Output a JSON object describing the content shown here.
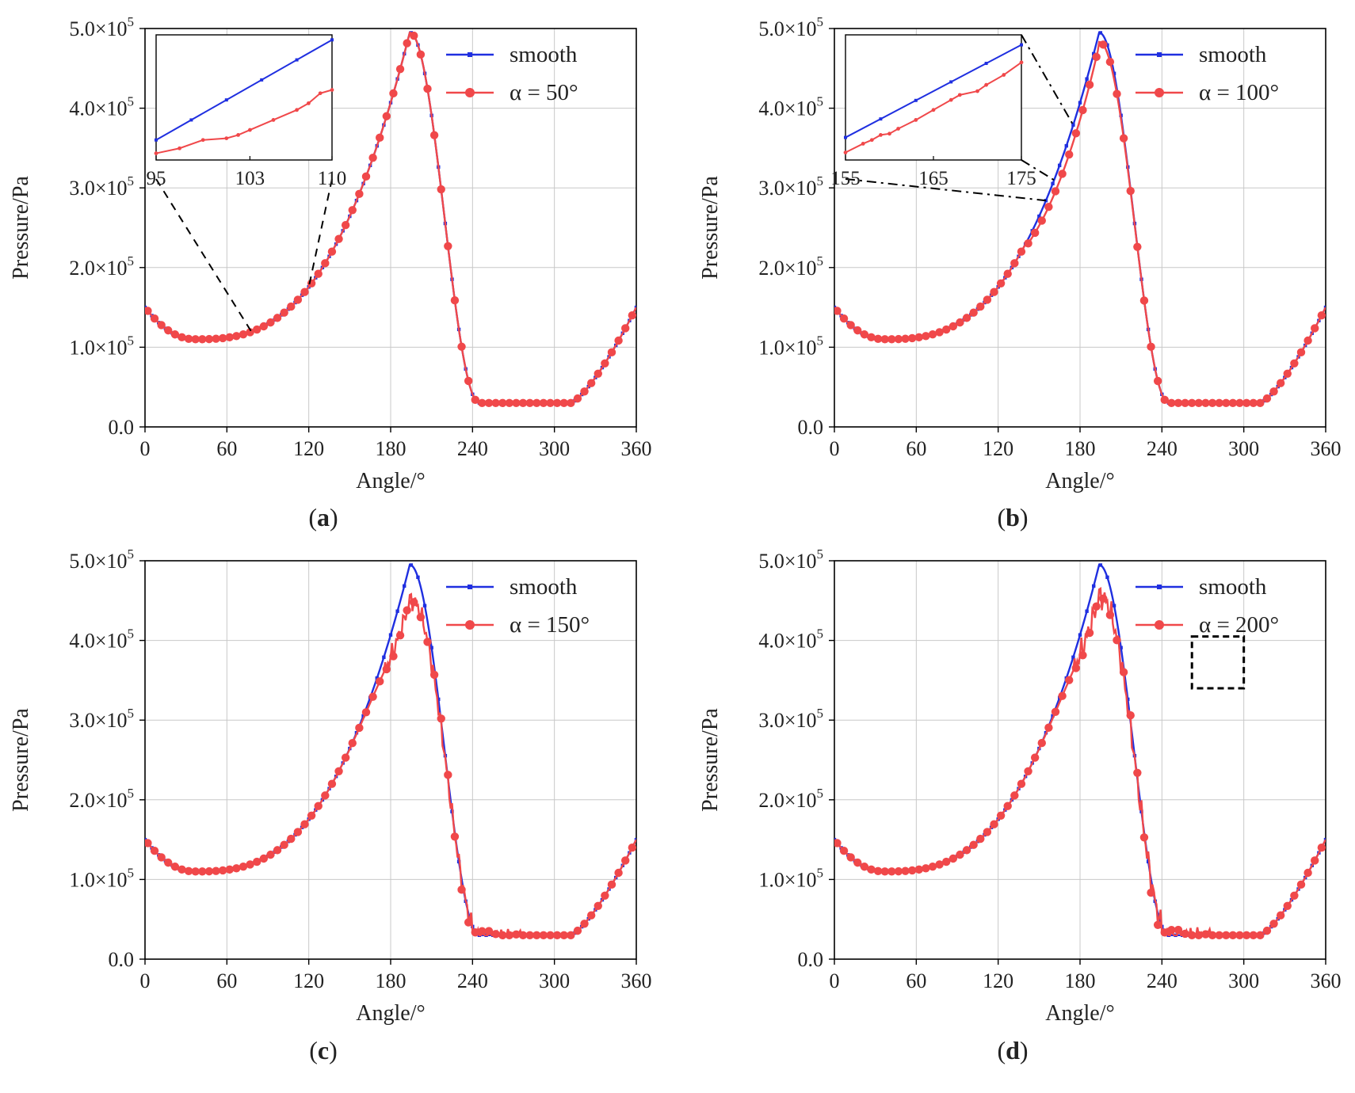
{
  "figure": {
    "panel_labels": [
      "a",
      "b",
      "c",
      "d"
    ],
    "colors": {
      "smooth": "#1f2fe0",
      "textured": "#f0484a",
      "grid": "#c8c8c8",
      "axis": "#000000",
      "guide": "#000000"
    }
  },
  "chart_data": [
    {
      "type": "line",
      "panel": "a",
      "xlabel": "Angle/°",
      "ylabel": "Pressure/Pa",
      "xlim": [
        0,
        360
      ],
      "ylim": [
        0,
        500000
      ],
      "xticks": [
        0,
        60,
        120,
        180,
        240,
        300,
        360
      ],
      "yticks": [
        0,
        100000,
        200000,
        300000,
        400000,
        500000
      ],
      "ytick_labels": [
        {
          "mant": "0.0",
          "exp": ""
        },
        {
          "mant": "1.0×10",
          "exp": "5"
        },
        {
          "mant": "2.0×10",
          "exp": "5"
        },
        {
          "mant": "3.0×10",
          "exp": "5"
        },
        {
          "mant": "4.0×10",
          "exp": "5"
        },
        {
          "mant": "5.0×10",
          "exp": "5"
        }
      ],
      "grid": true,
      "legend_position": "top-right",
      "series": [
        {
          "name": "smooth",
          "alpha": 0,
          "peak_drop": 0,
          "noise": 0
        },
        {
          "name": "α = 50°",
          "alpha": 50,
          "peak_drop": 0,
          "noise": 0
        }
      ],
      "inset": {
        "xlim": [
          95,
          110
        ],
        "xticks": [
          95,
          103,
          110
        ],
        "ylim": [
          100000,
          175000
        ],
        "smooth_endpoints": [
          [
            95,
            112000
          ],
          [
            110,
            172000
          ]
        ],
        "textured": [
          [
            95,
            104000
          ],
          [
            97,
            107000
          ],
          [
            99,
            112000
          ],
          [
            101,
            113000
          ],
          [
            102,
            115000
          ],
          [
            103,
            118000
          ],
          [
            105,
            124000
          ],
          [
            107,
            130000
          ],
          [
            108,
            134000
          ],
          [
            109,
            140000
          ],
          [
            110,
            142000
          ]
        ],
        "zoom_x_range": [
          95,
          110
        ]
      }
    },
    {
      "type": "line",
      "panel": "b",
      "xlabel": "Angle/°",
      "ylabel": "Pressure/Pa",
      "xlim": [
        0,
        360
      ],
      "ylim": [
        0,
        500000
      ],
      "xticks": [
        0,
        60,
        120,
        180,
        240,
        300,
        360
      ],
      "yticks": [
        0,
        100000,
        200000,
        300000,
        400000,
        500000
      ],
      "ytick_labels": [
        {
          "mant": "0.0",
          "exp": ""
        },
        {
          "mant": "1.0×10",
          "exp": "5"
        },
        {
          "mant": "2.0×10",
          "exp": "5"
        },
        {
          "mant": "3.0×10",
          "exp": "5"
        },
        {
          "mant": "4.0×10",
          "exp": "5"
        },
        {
          "mant": "5.0×10",
          "exp": "5"
        }
      ],
      "grid": true,
      "legend_position": "top-right",
      "series": [
        {
          "name": "smooth",
          "alpha": 0,
          "peak_drop": 0,
          "noise": 0
        },
        {
          "name": "α = 100°",
          "alpha": 100,
          "peak_drop": 12000,
          "noise": 0
        }
      ],
      "inset": {
        "xlim": [
          155,
          175
        ],
        "xticks": [
          155,
          165,
          175
        ],
        "ylim": [
          320000,
          420000
        ],
        "smooth_endpoints": [
          [
            155,
            338000
          ],
          [
            175,
            412000
          ]
        ],
        "textured": [
          [
            155,
            326000
          ],
          [
            157,
            333000
          ],
          [
            158,
            336000
          ],
          [
            159,
            340000
          ],
          [
            160,
            341000
          ],
          [
            161,
            345000
          ],
          [
            163,
            352000
          ],
          [
            165,
            360000
          ],
          [
            167,
            368000
          ],
          [
            168,
            372000
          ],
          [
            170,
            375000
          ],
          [
            171,
            380000
          ],
          [
            173,
            388000
          ],
          [
            175,
            398000
          ]
        ],
        "zoom_x_range": [
          155,
          175
        ]
      }
    },
    {
      "type": "line",
      "panel": "c",
      "xlabel": "Angle/°",
      "ylabel": "Pressure/Pa",
      "xlim": [
        0,
        360
      ],
      "ylim": [
        0,
        500000
      ],
      "xticks": [
        0,
        60,
        120,
        180,
        240,
        300,
        360
      ],
      "yticks": [
        0,
        100000,
        200000,
        300000,
        400000,
        500000
      ],
      "ytick_labels": [
        {
          "mant": "0.0",
          "exp": ""
        },
        {
          "mant": "1.0×10",
          "exp": "5"
        },
        {
          "mant": "2.0×10",
          "exp": "5"
        },
        {
          "mant": "3.0×10",
          "exp": "5"
        },
        {
          "mant": "4.0×10",
          "exp": "5"
        },
        {
          "mant": "5.0×10",
          "exp": "5"
        }
      ],
      "grid": true,
      "legend_position": "top-right",
      "series": [
        {
          "name": "smooth",
          "alpha": 0,
          "peak_drop": 0,
          "noise": 0
        },
        {
          "name": "α = 150°",
          "alpha": 150,
          "peak_drop": 45000,
          "noise": 14000
        }
      ]
    },
    {
      "type": "line",
      "panel": "d",
      "xlabel": "Angle/°",
      "ylabel": "Pressure/Pa",
      "xlim": [
        0,
        360
      ],
      "ylim": [
        0,
        500000
      ],
      "xticks": [
        0,
        60,
        120,
        180,
        240,
        300,
        360
      ],
      "yticks": [
        0,
        100000,
        200000,
        300000,
        400000,
        500000
      ],
      "ytick_labels": [
        {
          "mant": "0.0",
          "exp": ""
        },
        {
          "mant": "1.0×10",
          "exp": "5"
        },
        {
          "mant": "2.0×10",
          "exp": "5"
        },
        {
          "mant": "3.0×10",
          "exp": "5"
        },
        {
          "mant": "4.0×10",
          "exp": "5"
        },
        {
          "mant": "5.0×10",
          "exp": "5"
        }
      ],
      "grid": true,
      "legend_position": "top-right",
      "series": [
        {
          "name": "smooth",
          "alpha": 0,
          "peak_drop": 0,
          "noise": 0
        },
        {
          "name": "α = 200°",
          "alpha": 200,
          "peak_drop": 40000,
          "noise": 18000
        }
      ],
      "highlight_box": {
        "x_range": [
          262,
          300
        ],
        "y_range": [
          340000,
          405000
        ]
      }
    }
  ]
}
